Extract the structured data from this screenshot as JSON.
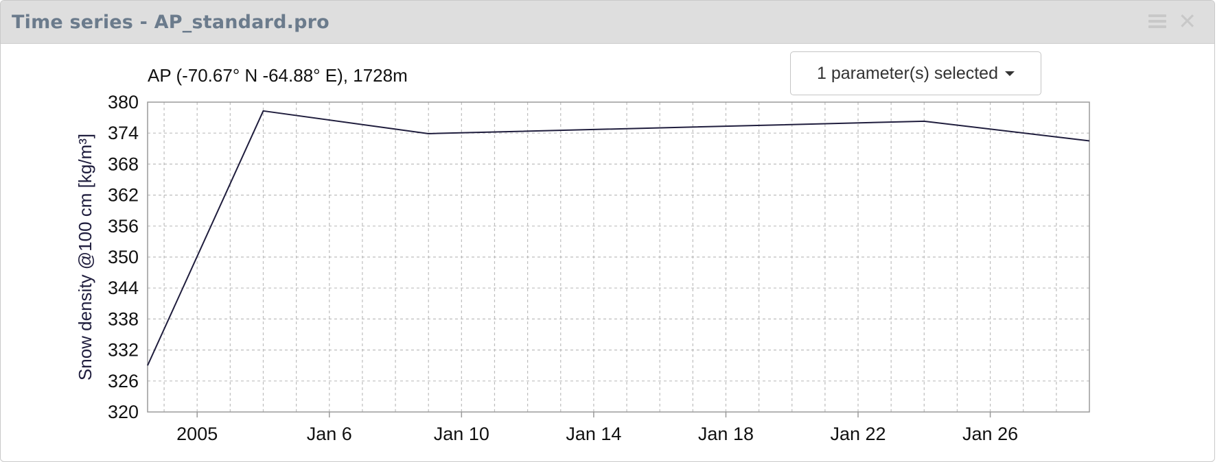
{
  "window": {
    "title": "Time series - AP_standard.pro"
  },
  "controls": {
    "parameter_select_label": "1 parameter(s) selected"
  },
  "colors": {
    "line": "#1f1d3d",
    "grid": "#bdbdbd",
    "axis": "#9a9a9a",
    "titlebar": "#dedede"
  },
  "chart_data": {
    "type": "line",
    "title": "AP (-70.67° N -64.88° E), 1728m",
    "ylabel": "Snow density @100 cm [kg/m³]",
    "xlabel": "",
    "ylim": [
      320,
      380
    ],
    "yticks": [
      380,
      374,
      368,
      362,
      356,
      350,
      344,
      338,
      332,
      326,
      320
    ],
    "xlim": [
      "2004-12-31T12:00",
      "2005-01-29T00:00"
    ],
    "xtick_labels": [
      {
        "date": "2005-01-02",
        "label": "2005"
      },
      {
        "date": "2005-01-06",
        "label": "Jan 6"
      },
      {
        "date": "2005-01-10",
        "label": "Jan 10"
      },
      {
        "date": "2005-01-14",
        "label": "Jan 14"
      },
      {
        "date": "2005-01-18",
        "label": "Jan 18"
      },
      {
        "date": "2005-01-22",
        "label": "Jan 22"
      },
      {
        "date": "2005-01-26",
        "label": "Jan 26"
      }
    ],
    "grid": true,
    "series": [
      {
        "x": [
          "2004-12-31T12:00",
          "2005-01-04",
          "2005-01-09",
          "2005-01-24",
          "2005-01-29"
        ],
        "values": [
          329,
          378.3,
          373.9,
          376.3,
          372.5
        ]
      }
    ]
  }
}
